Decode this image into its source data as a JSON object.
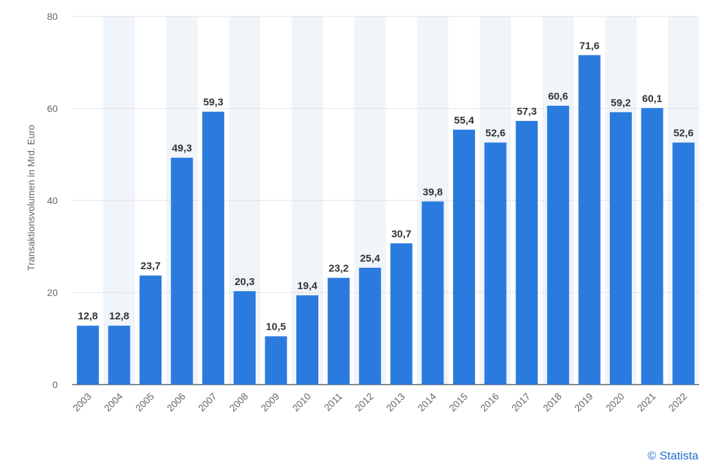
{
  "chart_data": {
    "type": "bar",
    "categories": [
      "2003",
      "2004",
      "2005",
      "2006",
      "2007",
      "2008",
      "2009",
      "2010",
      "2011",
      "2012",
      "2013",
      "2014",
      "2015",
      "2016",
      "2017",
      "2018",
      "2019",
      "2020",
      "2021",
      "2022"
    ],
    "values": [
      12.8,
      12.8,
      23.7,
      49.3,
      59.3,
      20.3,
      10.5,
      19.4,
      23.2,
      25.4,
      30.7,
      39.8,
      55.4,
      52.6,
      57.3,
      60.6,
      71.6,
      59.2,
      60.1,
      52.6
    ],
    "value_labels": [
      "12,8",
      "12,8",
      "23,7",
      "49,3",
      "59,3",
      "20,3",
      "10,5",
      "19,4",
      "23,2",
      "25,4",
      "30,7",
      "39,8",
      "55,4",
      "52,6",
      "57,3",
      "60,6",
      "71,6",
      "59,2",
      "60,1",
      "52,6"
    ],
    "ylabel": "Transaktionsvolumen in Mrd. Euro",
    "xlabel": "",
    "ylim": [
      0,
      80
    ],
    "yticks": [
      0,
      20,
      40,
      60,
      80
    ],
    "grid": true,
    "bar_color": "#2b7bde",
    "band_color": "#f0f5fa"
  },
  "credit": "© Statista"
}
